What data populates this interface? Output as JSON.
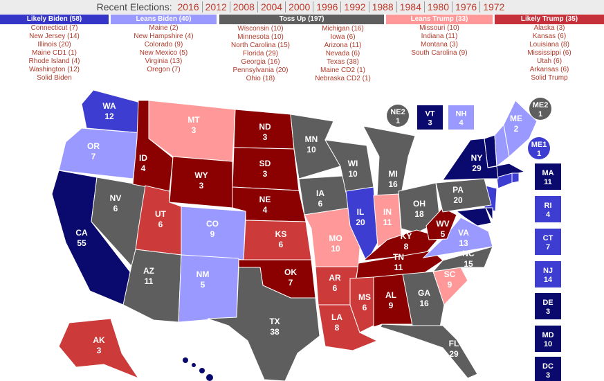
{
  "header": {
    "label": "Recent Elections:",
    "years": [
      "2016",
      "2012",
      "2008",
      "2004",
      "2000",
      "1996",
      "1992",
      "1988",
      "1984",
      "1980",
      "1976",
      "1972"
    ]
  },
  "columns": [
    {
      "title": "Likely Biden (58)",
      "color": "#3535c8",
      "items": [
        "Connecticut (7)",
        "New Jersey (14)",
        "Illinois (20)",
        "Maine CD1 (1)",
        "Rhode Island (4)",
        "Washington (12)",
        "Solid Biden"
      ]
    },
    {
      "title": "Leans Biden (40)",
      "color": "#9999ff",
      "items": [
        "Maine (2)",
        "New Hampshire (4)",
        "Colorado (9)",
        "New Mexico (5)",
        "Virginia (13)",
        "Oregon (7)"
      ]
    },
    {
      "title": "Toss Up (197)",
      "color": "#5e5e5e",
      "items": [
        "Wisconsin (10)",
        "Minnesota (10)",
        "North Carolina (15)",
        "Florida (29)",
        "Georgia (16)",
        "Pennsylvania (20)",
        "Ohio (18)",
        "Michigan (16)",
        "Iowa (6)",
        "Arizona (11)",
        "Nevada (6)",
        "Texas (38)",
        "Maine CD2 (1)",
        "Nebraska CD2 (1)"
      ]
    },
    {
      "title": "Leans Trump (33)",
      "color": "#ff9999",
      "items": [
        "Missouri (10)",
        "Indiana (11)",
        "Montana (3)",
        "South Carolina (9)"
      ]
    },
    {
      "title": "Likely Trump (35)",
      "color": "#c6303a",
      "items": [
        "Alaska (3)",
        "Kansas (6)",
        "Louisiana (8)",
        "Mississippi (6)",
        "Utah (6)",
        "Arkansas (6)",
        "Solid Trump"
      ]
    }
  ],
  "states": [
    {
      "abbr": "WA",
      "ev": 12,
      "color": "#3d3dd1"
    },
    {
      "abbr": "OR",
      "ev": 7,
      "color": "#9999ff"
    },
    {
      "abbr": "CA",
      "ev": 55,
      "color": "#0a0a6e"
    },
    {
      "abbr": "NV",
      "ev": 6,
      "color": "#5e5e5e"
    },
    {
      "abbr": "ID",
      "ev": 4,
      "color": "#8b0000"
    },
    {
      "abbr": "MT",
      "ev": 3,
      "color": "#ff9999"
    },
    {
      "abbr": "WY",
      "ev": 3,
      "color": "#8b0000"
    },
    {
      "abbr": "UT",
      "ev": 6,
      "color": "#cc3a3a"
    },
    {
      "abbr": "CO",
      "ev": 9,
      "color": "#9999ff"
    },
    {
      "abbr": "AZ",
      "ev": 11,
      "color": "#5e5e5e"
    },
    {
      "abbr": "NM",
      "ev": 5,
      "color": "#9999ff"
    },
    {
      "abbr": "ND",
      "ev": 3,
      "color": "#8b0000"
    },
    {
      "abbr": "SD",
      "ev": 3,
      "color": "#8b0000"
    },
    {
      "abbr": "NE",
      "ev": 4,
      "color": "#8b0000"
    },
    {
      "abbr": "KS",
      "ev": 6,
      "color": "#cc3a3a"
    },
    {
      "abbr": "OK",
      "ev": 7,
      "color": "#8b0000"
    },
    {
      "abbr": "TX",
      "ev": 38,
      "color": "#5e5e5e"
    },
    {
      "abbr": "MN",
      "ev": 10,
      "color": "#5e5e5e"
    },
    {
      "abbr": "IA",
      "ev": 6,
      "color": "#5e5e5e"
    },
    {
      "abbr": "MO",
      "ev": 10,
      "color": "#ff9999"
    },
    {
      "abbr": "AR",
      "ev": 6,
      "color": "#cc3a3a"
    },
    {
      "abbr": "LA",
      "ev": 8,
      "color": "#cc3a3a"
    },
    {
      "abbr": "WI",
      "ev": 10,
      "color": "#5e5e5e"
    },
    {
      "abbr": "IL",
      "ev": 20,
      "color": "#3d3dd1"
    },
    {
      "abbr": "MI",
      "ev": 16,
      "color": "#5e5e5e"
    },
    {
      "abbr": "IN",
      "ev": 11,
      "color": "#ff9999"
    },
    {
      "abbr": "OH",
      "ev": 18,
      "color": "#5e5e5e"
    },
    {
      "abbr": "KY",
      "ev": 8,
      "color": "#8b0000"
    },
    {
      "abbr": "TN",
      "ev": 11,
      "color": "#8b0000"
    },
    {
      "abbr": "MS",
      "ev": 6,
      "color": "#cc3a3a"
    },
    {
      "abbr": "AL",
      "ev": 9,
      "color": "#8b0000"
    },
    {
      "abbr": "GA",
      "ev": 16,
      "color": "#5e5e5e"
    },
    {
      "abbr": "FL",
      "ev": 29,
      "color": "#5e5e5e"
    },
    {
      "abbr": "SC",
      "ev": 9,
      "color": "#ff9999"
    },
    {
      "abbr": "NC",
      "ev": 15,
      "color": "#5e5e5e"
    },
    {
      "abbr": "VA",
      "ev": 13,
      "color": "#9999ff"
    },
    {
      "abbr": "WV",
      "ev": 5,
      "color": "#8b0000"
    },
    {
      "abbr": "PA",
      "ev": 20,
      "color": "#5e5e5e"
    },
    {
      "abbr": "NY",
      "ev": 29,
      "color": "#0a0a6e"
    },
    {
      "abbr": "ME",
      "ev": 2,
      "color": "#9999ff"
    },
    {
      "abbr": "AK",
      "ev": 3,
      "color": "#cc3a3a"
    }
  ],
  "insets": [
    {
      "abbr": "NE2",
      "ev": 1,
      "color": "#5e5e5e"
    },
    {
      "abbr": "VT",
      "ev": 3,
      "color": "#0a0a6e"
    },
    {
      "abbr": "NH",
      "ev": 4,
      "color": "#9999ff"
    },
    {
      "abbr": "ME2",
      "ev": 1,
      "color": "#5e5e5e"
    },
    {
      "abbr": "ME1",
      "ev": 1,
      "color": "#3d3dd1"
    },
    {
      "abbr": "MA",
      "ev": 11,
      "color": "#0a0a6e"
    },
    {
      "abbr": "RI",
      "ev": 4,
      "color": "#3d3dd1"
    },
    {
      "abbr": "CT",
      "ev": 7,
      "color": "#3d3dd1"
    },
    {
      "abbr": "NJ",
      "ev": 14,
      "color": "#3d3dd1"
    },
    {
      "abbr": "DE",
      "ev": 3,
      "color": "#0a0a6e"
    },
    {
      "abbr": "MD",
      "ev": 10,
      "color": "#0a0a6e"
    },
    {
      "abbr": "DC",
      "ev": 3,
      "color": "#0a0a6e"
    }
  ]
}
